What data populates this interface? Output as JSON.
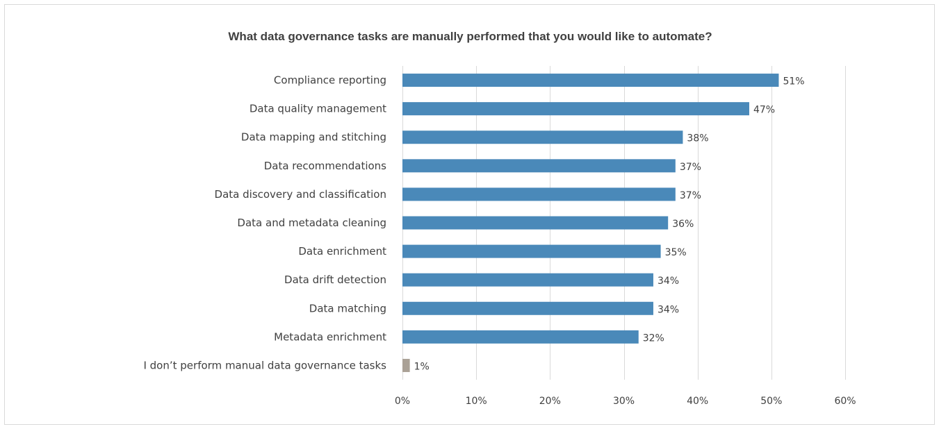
{
  "chart_data": {
    "type": "bar",
    "orientation": "horizontal",
    "title": "What data governance tasks are manually performed that you would like to automate?",
    "categories": [
      "Compliance reporting",
      "Data quality management",
      "Data mapping and stitching",
      "Data recommendations",
      "Data discovery and classification",
      "Data and metadata cleaning",
      "Data enrichment",
      "Data drift detection",
      "Data matching",
      "Metadata enrichment",
      "I don’t perform manual data governance tasks"
    ],
    "values": [
      51,
      47,
      38,
      37,
      37,
      36,
      35,
      34,
      34,
      32,
      1
    ],
    "data_labels": [
      "51%",
      "47%",
      "38%",
      "37%",
      "37%",
      "36%",
      "35%",
      "34%",
      "34%",
      "32%",
      "1%"
    ],
    "colors": [
      "#4a89b9",
      "#4a89b9",
      "#4a89b9",
      "#4a89b9",
      "#4a89b9",
      "#4a89b9",
      "#4a89b9",
      "#4a89b9",
      "#4a89b9",
      "#4a89b9",
      "#aaa196"
    ],
    "xlim": [
      0,
      60
    ],
    "xticks": [
      0,
      10,
      20,
      30,
      40,
      50,
      60
    ],
    "xtick_labels": [
      "0%",
      "10%",
      "20%",
      "30%",
      "40%",
      "50%",
      "60%"
    ],
    "grid": "vertical",
    "legend": "none"
  }
}
